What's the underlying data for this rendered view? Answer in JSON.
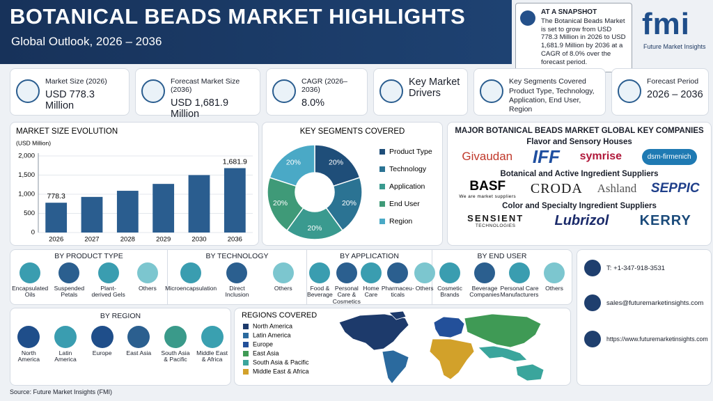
{
  "header": {
    "title": "BOTANICAL BEADS MARKET HIGHLIGHTS",
    "subtitle": "Global Outlook, 2026 – 2036"
  },
  "snapshot": {
    "heading": "AT A SNAPSHOT",
    "text": "The Botanical Beads Market is set to grow from USD 778.3 Million in 2026 to USD 1,681.9 Million by 2036 at a CAGR of 8.0% over the forecast period."
  },
  "logo": {
    "name": "fmi",
    "tagline": "Future Market Insights"
  },
  "kpis": [
    {
      "label": "Market Size (2026)",
      "value": "USD 778.3 Million"
    },
    {
      "label": "Forecast Market Size (2036)",
      "value": "USD 1,681.9 Million"
    },
    {
      "label": "CAGR (2026–2036)",
      "value": "8.0%"
    },
    {
      "value": "Key Market Drivers"
    },
    {
      "label": "Key Segments Covered",
      "value": "Product Type, Technology, Application, End User, Region"
    },
    {
      "label": "Forecast Period",
      "value": "2026 – 2036"
    }
  ],
  "market_size_chart": {
    "type": "bar",
    "title": "MARKET SIZE EVOLUTION",
    "y_label": "(USD Million)",
    "categories": [
      "2026",
      "2027",
      "2028",
      "2029",
      "2030",
      "2036"
    ],
    "values": [
      778.3,
      930,
      1090,
      1270,
      1500,
      1681.9
    ],
    "value_labels": [
      "778.3",
      null,
      null,
      null,
      null,
      "1,681.9"
    ],
    "color": "#2a5d8f",
    "grid": true,
    "ylim": [
      0,
      2000
    ],
    "yticks": [
      0,
      500,
      {
        "value": 1000,
        "label": "1,000"
      },
      {
        "value": 1500,
        "label": "1,500"
      },
      {
        "value": 2000,
        "label": "2,000"
      }
    ]
  },
  "segments_chart": {
    "type": "pie",
    "title": "KEY SEGMENTS COVERED",
    "categories": [
      "Product Type",
      "Technology",
      "Application",
      "End User",
      "Region"
    ],
    "values": [
      20,
      20,
      20,
      20,
      20
    ],
    "value_labels": [
      "20%",
      "20%",
      "20%",
      "20%",
      "20%"
    ],
    "colors": [
      "#1f4e79",
      "#2b7393",
      "#3a9a8f",
      "#3f9a78",
      "#4aa9c6"
    ]
  },
  "companies": {
    "title": "MAJOR BOTANICAL BEADS MARKET GLOBAL KEY COMPANIES",
    "groups": [
      {
        "name": "Flavor and Sensory Houses",
        "companies": [
          {
            "name": "Givaudan"
          },
          {
            "name": "IFF"
          },
          {
            "name": "symrise"
          },
          {
            "name": "dsm-firmenich"
          }
        ]
      },
      {
        "name": "Botanical and Active Ingredient Suppliers",
        "companies": [
          {
            "name": "BASF",
            "tagline": "We are market suppliers"
          },
          {
            "name": "CRODA"
          },
          {
            "name": "Ashland"
          },
          {
            "name": "SEPPIC"
          }
        ]
      },
      {
        "name": "Color and Specialty Ingredient Suppliers",
        "companies": [
          {
            "name": "SENSIENT",
            "tagline": "TECHNOLOGIES"
          },
          {
            "name": "Lubrizol"
          },
          {
            "name": "KERRY"
          }
        ]
      }
    ]
  },
  "segments": [
    {
      "title": "BY PRODUCT TYPE",
      "items": [
        "Encapsulated Oils",
        "Suspended Petals",
        "Plant-derived Gels",
        "Others"
      ]
    },
    {
      "title": "BY TECHNOLOGY",
      "items": [
        "Microencapsulation",
        "Direct Inclusion",
        "Others"
      ]
    },
    {
      "title": "BY APPLICATION",
      "items": [
        "Food & Beverage",
        "Personal Care & Cosmetics",
        "Home Care",
        "Pharmaceu- ticals",
        "Others"
      ]
    },
    {
      "title": "BY END USER",
      "items": [
        "Cosmetic Brands",
        "Beverage Companies",
        "Personal Care Manufacturers",
        "Others"
      ]
    }
  ],
  "region": {
    "title": "BY REGION",
    "items": [
      "North America",
      "Latin America",
      "Europe",
      "East Asia",
      "South Asia & Pacific",
      "Middle East & Africa"
    ]
  },
  "regions_map": {
    "title": "REGIONS COVERED",
    "legend": [
      {
        "name": "North America",
        "color": "#1d3a6b"
      },
      {
        "name": "Latin America",
        "color": "#2b6a9e"
      },
      {
        "name": "Europe",
        "color": "#23509a"
      },
      {
        "name": "East Asia",
        "color": "#3f9a55"
      },
      {
        "name": "South Asia & Pacific",
        "color": "#3aa59c"
      },
      {
        "name": "Middle East & Africa",
        "color": "#d2a12a"
      }
    ]
  },
  "contact": {
    "phone": "T: +1-347-918-3531",
    "email": "sales@futuremarketinsights.com",
    "web": "https://www.futuremarketinsights.com"
  },
  "source": "Source: Future Market Insights (FMI)"
}
